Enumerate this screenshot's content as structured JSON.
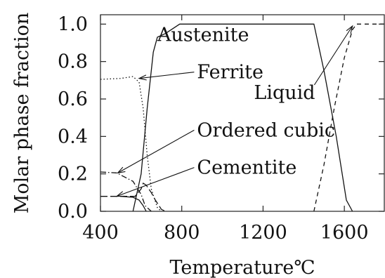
{
  "chart_data": {
    "type": "line",
    "xlabel": "Temperature℃",
    "ylabel": "Molar phase fraction",
    "xlim": [
      400,
      1800
    ],
    "ylim": [
      0,
      1.05
    ],
    "x_ticks": [
      {
        "value": 400,
        "label": "400"
      },
      {
        "value": 800,
        "label": "800"
      },
      {
        "value": 1200,
        "label": "1200"
      },
      {
        "value": 1600,
        "label": "1600"
      }
    ],
    "y_ticks": [
      {
        "value": 0.0,
        "label": "0.0"
      },
      {
        "value": 0.2,
        "label": "0.2"
      },
      {
        "value": 0.4,
        "label": "0.4"
      },
      {
        "value": 0.6,
        "label": "0.6"
      },
      {
        "value": 0.8,
        "label": "0.8"
      },
      {
        "value": 1.0,
        "label": "1.0"
      }
    ],
    "grid": false,
    "series": [
      {
        "name": "Austenite",
        "style": "solid",
        "points": [
          [
            560,
            0
          ],
          [
            600,
            0.2
          ],
          [
            630,
            0.55
          ],
          [
            660,
            0.85
          ],
          [
            680,
            0.93
          ],
          [
            720,
            0.95
          ],
          [
            790,
            1.0
          ],
          [
            1450,
            1.0
          ],
          [
            1500,
            0.75
          ],
          [
            1560,
            0.4
          ],
          [
            1610,
            0.06
          ],
          [
            1640,
            0
          ]
        ]
      },
      {
        "name": "Ferrite",
        "style": "dotted",
        "points": [
          [
            400,
            0.705
          ],
          [
            500,
            0.71
          ],
          [
            560,
            0.72
          ],
          [
            590,
            0.69
          ],
          [
            610,
            0.55
          ],
          [
            630,
            0.3
          ],
          [
            650,
            0.12
          ],
          [
            680,
            0.02
          ],
          [
            700,
            0
          ]
        ]
      },
      {
        "name": "Liquid",
        "style": "dashed",
        "points": [
          [
            1450,
            0
          ],
          [
            1500,
            0.25
          ],
          [
            1550,
            0.55
          ],
          [
            1600,
            0.82
          ],
          [
            1640,
            0.97
          ],
          [
            1660,
            1.0
          ],
          [
            1800,
            1.0
          ]
        ]
      },
      {
        "name": "Ordered cubic",
        "style": "dashdot",
        "points": [
          [
            400,
            0.21
          ],
          [
            480,
            0.205
          ],
          [
            560,
            0.16
          ],
          [
            600,
            0.09
          ],
          [
            620,
            0.03
          ],
          [
            650,
            0
          ]
        ]
      },
      {
        "name": "Cementite",
        "style": "dashed-long",
        "points": [
          [
            400,
            0.08
          ],
          [
            500,
            0.08
          ],
          [
            570,
            0.08
          ],
          [
            600,
            0.12
          ],
          [
            610,
            0.15
          ],
          [
            625,
            0.14
          ],
          [
            650,
            0.1
          ],
          [
            670,
            0.06
          ],
          [
            700,
            0.01
          ],
          [
            720,
            0
          ]
        ]
      },
      {
        "name": "",
        "style": "solid",
        "points": [
          [
            500,
            0.08
          ],
          [
            560,
            0.075
          ],
          [
            590,
            0.06
          ],
          [
            610,
            0.03
          ],
          [
            625,
            0
          ]
        ]
      }
    ],
    "annotations": [
      {
        "text": "Austenite",
        "x": 680,
        "y": 0.91,
        "arrow": null
      },
      {
        "text": "Ferrite",
        "x": 875,
        "y": 0.71,
        "arrow": [
          590,
          0.71
        ]
      },
      {
        "text": "Liquid",
        "x": 1155,
        "y": 0.6,
        "arrow": [
          1640,
          0.99
        ]
      },
      {
        "text": "Ordered cubic",
        "x": 875,
        "y": 0.4,
        "arrow": [
          485,
          0.205
        ]
      },
      {
        "text": "Cementite",
        "x": 875,
        "y": 0.2,
        "arrow": [
          480,
          0.08
        ]
      }
    ]
  }
}
